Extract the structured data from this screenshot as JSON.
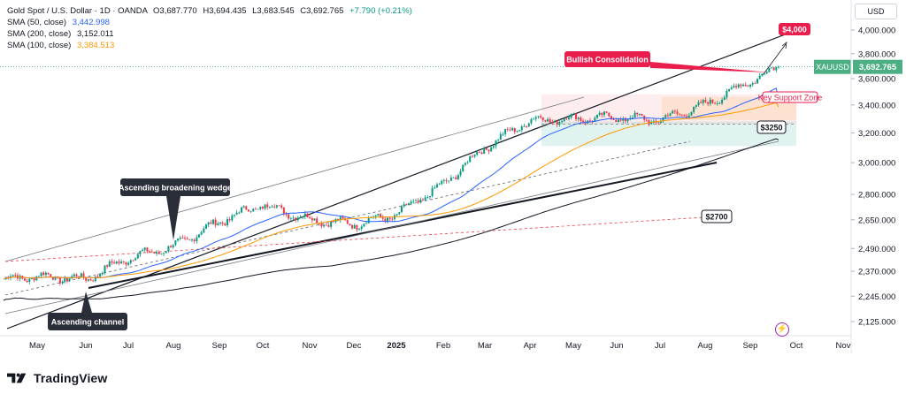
{
  "header": {
    "symbol_line": "Gold Spot / U.S. Dollar · 1D · OANDA",
    "open": "O3,687.770",
    "high": "H3,694.435",
    "low": "L3,683.545",
    "close": "C3,692.765",
    "change": "+7.790 (+0.21%)",
    "sma50_label": "SMA (50, close)",
    "sma50_value": "3,442.998",
    "sma200_label": "SMA (200, close)",
    "sma200_value": "3,152.011",
    "sma100_label": "SMA (100, close)",
    "sma100_value": "3,384.513",
    "currency": "USD"
  },
  "price_tag": {
    "symbol": "XAUUSD",
    "value": "3,692.765"
  },
  "annotations": {
    "target": "$4,000",
    "bullish": "Bullish Consolidation",
    "key_support": "Key Support Zone",
    "level_3250": "$3250",
    "level_2700": "$2700",
    "wedge": "Ascending broadening wedge",
    "channel": "Ascending channel"
  },
  "footer": {
    "brand": "TradingView"
  },
  "colors": {
    "up": "#089981",
    "down": "#f23645",
    "sma50": "#2962ff",
    "sma200": "#131722",
    "sma100": "#ff9800",
    "annotation_red": "#e91e4d",
    "label_dark": "#2a2e39",
    "price_green": "#4caf84"
  },
  "chart_data": {
    "type": "candlestick",
    "interval": "1D",
    "x_ticks": [
      "May",
      "Jun",
      "Jul",
      "Aug",
      "Sep",
      "Oct",
      "Nov",
      "Dec",
      "2025",
      "Feb",
      "Mar",
      "Apr",
      "May",
      "Jun",
      "Jul",
      "Aug",
      "Sep",
      "Oct",
      "Nov"
    ],
    "y_ticks": [
      "4,000.000",
      "3,800.000",
      "3,600.000",
      "3,400.000",
      "3,200.000",
      "3,000.000",
      "2,800.000",
      "2,650.000",
      "2,490.000",
      "2,370.000",
      "2,245.000",
      "2,125.000"
    ],
    "y_tick_values": [
      4000,
      3800,
      3600,
      3400,
      3200,
      3000,
      2800,
      2650,
      2490,
      2370,
      2245,
      2125
    ],
    "scale": "log",
    "close_path_monthly": [
      {
        "t": "Apr",
        "v": 2330
      },
      {
        "t": "May",
        "v": 2345
      },
      {
        "t": "Jun",
        "v": 2330
      },
      {
        "t": "Jul",
        "v": 2440
      },
      {
        "t": "Aug",
        "v": 2500
      },
      {
        "t": "Sep",
        "v": 2640
      },
      {
        "t": "Oct",
        "v": 2740
      },
      {
        "t": "Nov",
        "v": 2650
      },
      {
        "t": "Dec",
        "v": 2625
      },
      {
        "t": "2025",
        "v": 2680
      },
      {
        "t": "Feb",
        "v": 2860
      },
      {
        "t": "Mar",
        "v": 3100
      },
      {
        "t": "Apr",
        "v": 3290
      },
      {
        "t": "May",
        "v": 3300
      },
      {
        "t": "Jun",
        "v": 3310
      },
      {
        "t": "Jul",
        "v": 3290
      },
      {
        "t": "Aug",
        "v": 3400
      },
      {
        "t": "Sep",
        "v": 3692.765
      }
    ],
    "series": [
      {
        "name": "SMA (50, close)",
        "last": 3442.998
      },
      {
        "name": "SMA (200, close)",
        "last": 3152.011
      },
      {
        "name": "SMA (100, close)",
        "last": 3384.513
      }
    ]
  }
}
